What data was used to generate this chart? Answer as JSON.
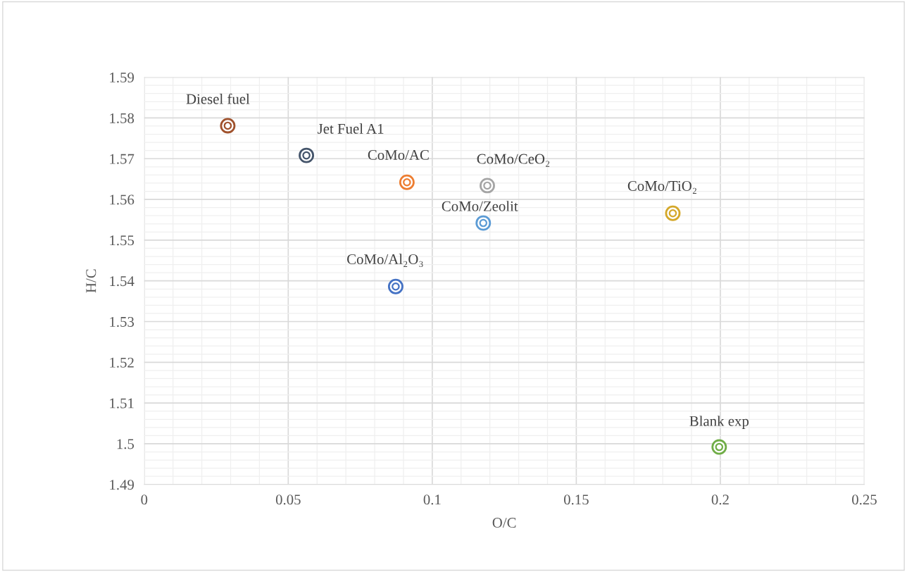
{
  "chart_data": {
    "type": "scatter",
    "xlabel": "O/C",
    "ylabel": "H/C",
    "series": [
      {
        "name": "Diesel fuel",
        "color": "#a0522d",
        "x": [
          0.029
        ],
        "values": [
          1.5781
        ]
      },
      {
        "name": "Jet Fuel A1",
        "color": "#44546a",
        "x": [
          0.0563
        ],
        "values": [
          1.5708
        ]
      },
      {
        "name": "CoMo/AC",
        "color": "#ed7d31",
        "x": [
          0.0912
        ],
        "values": [
          1.5642
        ]
      },
      {
        "name": "CoMo/CeO₂",
        "color": "#a5a5a5",
        "x": [
          0.1191
        ],
        "values": [
          1.5634
        ]
      },
      {
        "name": "CoMo/Zeolit",
        "color": "#5b9bd5",
        "x": [
          0.1177
        ],
        "values": [
          1.5542
        ]
      },
      {
        "name": "CoMo/TiO₂",
        "color": "#d4a82a",
        "x": [
          0.1835
        ],
        "values": [
          1.5566
        ]
      },
      {
        "name": "CoMo/Al₂O₃",
        "color": "#4472c4",
        "x": [
          0.0873
        ],
        "values": [
          1.5386
        ]
      },
      {
        "name": "Blank exp",
        "color": "#70ad47",
        "x": [
          0.1996
        ],
        "values": [
          1.4992
        ]
      }
    ],
    "xlim": [
      0,
      0.25
    ],
    "xticks": [
      0,
      0.05,
      0.1,
      0.15,
      0.2,
      0.25
    ],
    "ylim": [
      1.49,
      1.59
    ],
    "yticks": [
      1.49,
      1.5,
      1.51,
      1.52,
      1.53,
      1.54,
      1.55,
      1.56,
      1.57,
      1.58,
      1.59
    ],
    "grid": true,
    "marker": "circle"
  }
}
